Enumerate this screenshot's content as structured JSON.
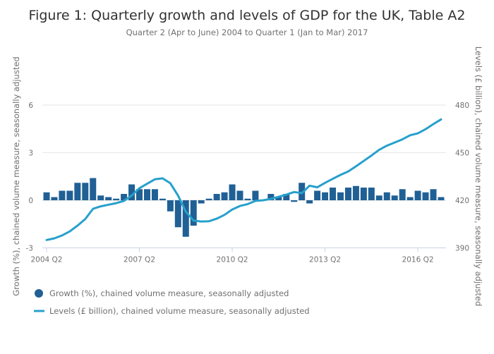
{
  "chart_data": {
    "type": "bar+line",
    "title": "Figure 1: Quarterly growth and levels of GDP for the UK, Table A2",
    "subtitle": "Quarter 2 (Apr to June) 2004 to Quarter 1 (Jan to Mar) 2017",
    "ylabel_left": "Growth (%), chained volume measure, seasonally adjusted",
    "ylabel_right": "Levels (£ billion), chained volume measure, seasonally adjusted",
    "xlabel": "",
    "ylim_left": [
      -3,
      6
    ],
    "ylim_right": [
      390,
      480
    ],
    "yticks_left": [
      "-3",
      "0",
      "3",
      "6"
    ],
    "yticks_left_values": [
      -3,
      0,
      3,
      6
    ],
    "yticks_right": [
      "390",
      "420",
      "450",
      "480"
    ],
    "yticks_right_values": [
      390,
      420,
      450,
      480
    ],
    "xticks": [
      "2004 Q2",
      "2007 Q2",
      "2010 Q2",
      "2013 Q2",
      "2016 Q2"
    ],
    "xtick_indices": [
      0,
      12,
      24,
      36,
      48
    ],
    "grid": true,
    "legend_position": "bottom-left",
    "categories": [
      "2004 Q2",
      "2004 Q3",
      "2004 Q4",
      "2005 Q1",
      "2005 Q2",
      "2005 Q3",
      "2005 Q4",
      "2006 Q1",
      "2006 Q2",
      "2006 Q3",
      "2006 Q4",
      "2007 Q1",
      "2007 Q2",
      "2007 Q3",
      "2007 Q4",
      "2008 Q1",
      "2008 Q2",
      "2008 Q3",
      "2008 Q4",
      "2009 Q1",
      "2009 Q2",
      "2009 Q3",
      "2009 Q4",
      "2010 Q1",
      "2010 Q2",
      "2010 Q3",
      "2010 Q4",
      "2011 Q1",
      "2011 Q2",
      "2011 Q3",
      "2011 Q4",
      "2012 Q1",
      "2012 Q2",
      "2012 Q3",
      "2012 Q4",
      "2013 Q1",
      "2013 Q2",
      "2013 Q3",
      "2013 Q4",
      "2014 Q1",
      "2014 Q2",
      "2014 Q3",
      "2014 Q4",
      "2015 Q1",
      "2015 Q2",
      "2015 Q3",
      "2015 Q4",
      "2016 Q1",
      "2016 Q2",
      "2016 Q3",
      "2016 Q4",
      "2017 Q1"
    ],
    "series": [
      {
        "name": "Growth (%), chained volume measure, seasonally adjusted",
        "type": "bar",
        "axis": "left",
        "color": "#206095",
        "values": [
          0.5,
          0.2,
          0.6,
          0.6,
          1.1,
          1.1,
          1.4,
          0.3,
          0.2,
          0.1,
          0.4,
          1.0,
          0.7,
          0.7,
          0.7,
          0.1,
          -0.7,
          -1.7,
          -2.3,
          -1.6,
          -0.2,
          0.1,
          0.4,
          0.5,
          1.0,
          0.6,
          0.1,
          0.6,
          0.0,
          0.4,
          0.2,
          0.4,
          -0.1,
          1.1,
          -0.2,
          0.6,
          0.5,
          0.8,
          0.5,
          0.8,
          0.9,
          0.8,
          0.8,
          0.3,
          0.5,
          0.3,
          0.7,
          0.2,
          0.6,
          0.5,
          0.7,
          0.2
        ]
      },
      {
        "name": "Levels (£ billion), chained volume measure, seasonally adjusted",
        "type": "line",
        "axis": "right",
        "color": "#27a0cc",
        "values": [
          395.0,
          396.0,
          397.8,
          400.4,
          404.0,
          408.2,
          414.6,
          416.2,
          417.2,
          418.2,
          419.6,
          423.0,
          427.6,
          430.4,
          433.2,
          433.8,
          430.7,
          423.0,
          412.8,
          407.2,
          406.6,
          406.8,
          408.4,
          410.8,
          414.2,
          416.4,
          417.6,
          419.6,
          420.0,
          420.9,
          422.2,
          423.6,
          425.2,
          424.5,
          429.2,
          428.2,
          431.0,
          433.5,
          436.0,
          438.2,
          441.4,
          444.8,
          448.2,
          451.8,
          454.4,
          456.4,
          458.4,
          461.0,
          462.2,
          464.8,
          468.0,
          471.0
        ]
      }
    ]
  }
}
